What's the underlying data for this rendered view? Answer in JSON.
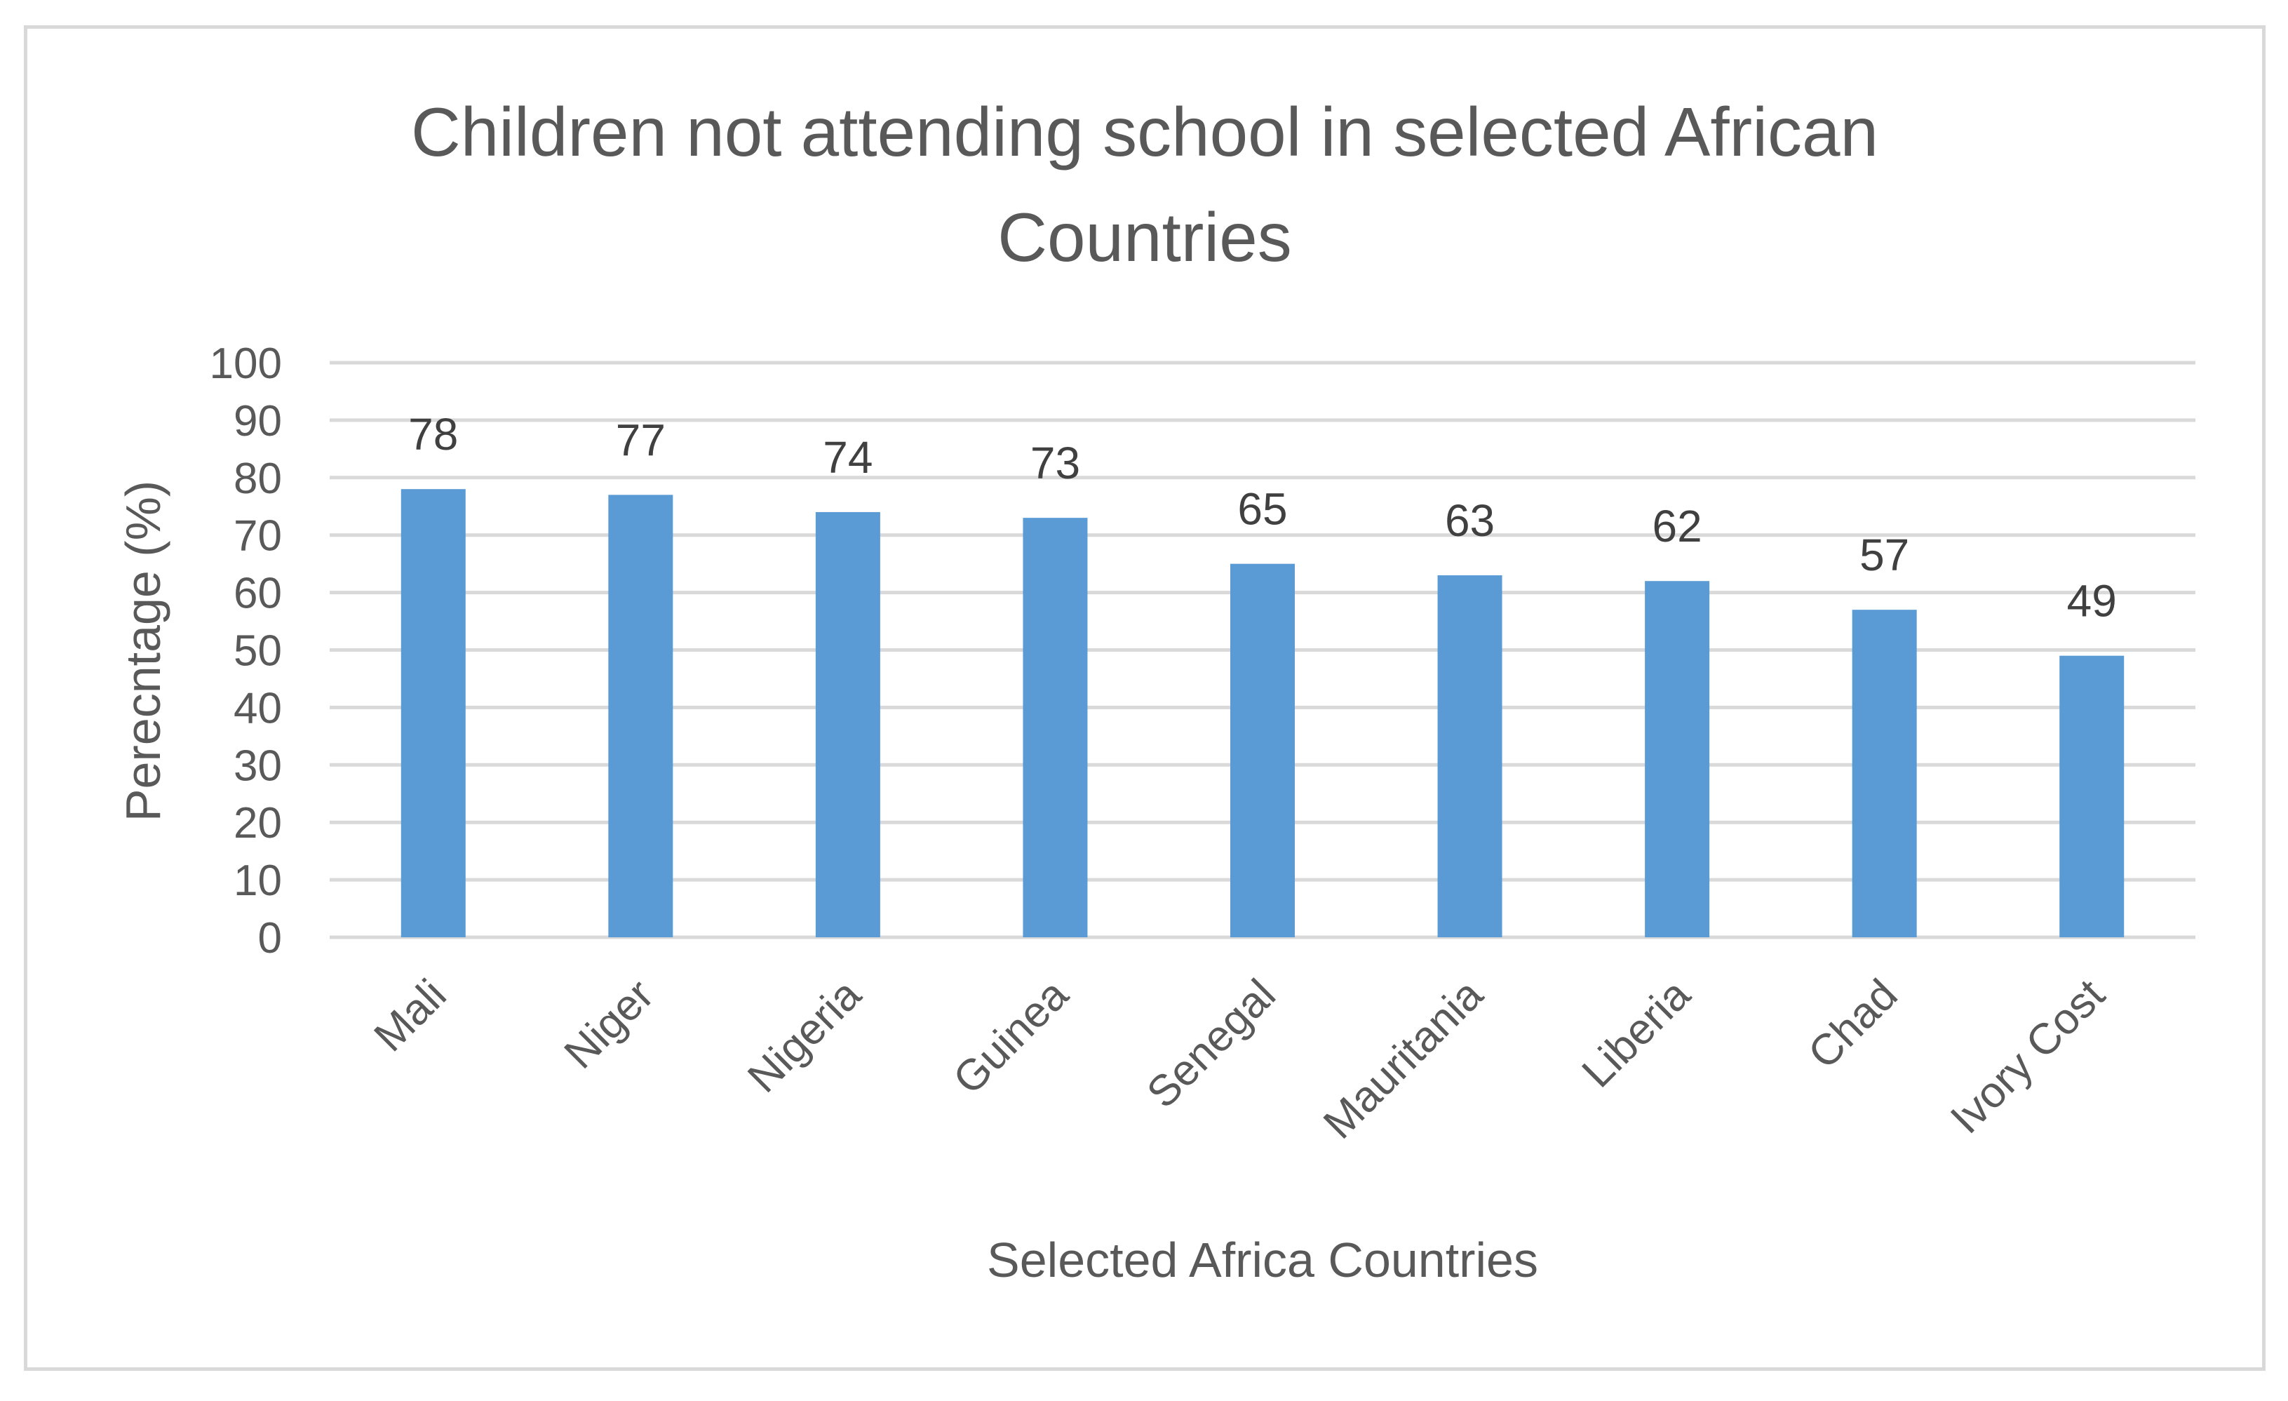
{
  "chart_data": {
    "type": "bar",
    "title_lines": [
      "Children not attending school in selected African",
      "Countries"
    ],
    "xlabel": "Selected Africa Countries",
    "ylabel": "Perecntage (%)",
    "categories": [
      "Mali",
      "Niger",
      "Nigeria",
      "Guinea",
      "Senegal",
      "Mauritania",
      "Liberia",
      "Chad",
      "Ivory Cost"
    ],
    "values": [
      78,
      77,
      74,
      73,
      65,
      63,
      62,
      57,
      49
    ],
    "data_labels": [
      "78",
      "77",
      "74",
      "73",
      "65",
      "63",
      "62",
      "57",
      "49"
    ],
    "ylim": [
      0,
      100
    ],
    "yticks": [
      0,
      10,
      20,
      30,
      40,
      50,
      60,
      70,
      80,
      90,
      100
    ],
    "ytick_labels": [
      "0",
      "10",
      "20",
      "30",
      "40",
      "50",
      "60",
      "70",
      "80",
      "90",
      "100"
    ],
    "grid": true,
    "legend": "none",
    "colors": {
      "bar": "#5b9bd5",
      "grid": "#d9d9d9",
      "text": "#595959",
      "frame": "#d9d9d9"
    }
  }
}
